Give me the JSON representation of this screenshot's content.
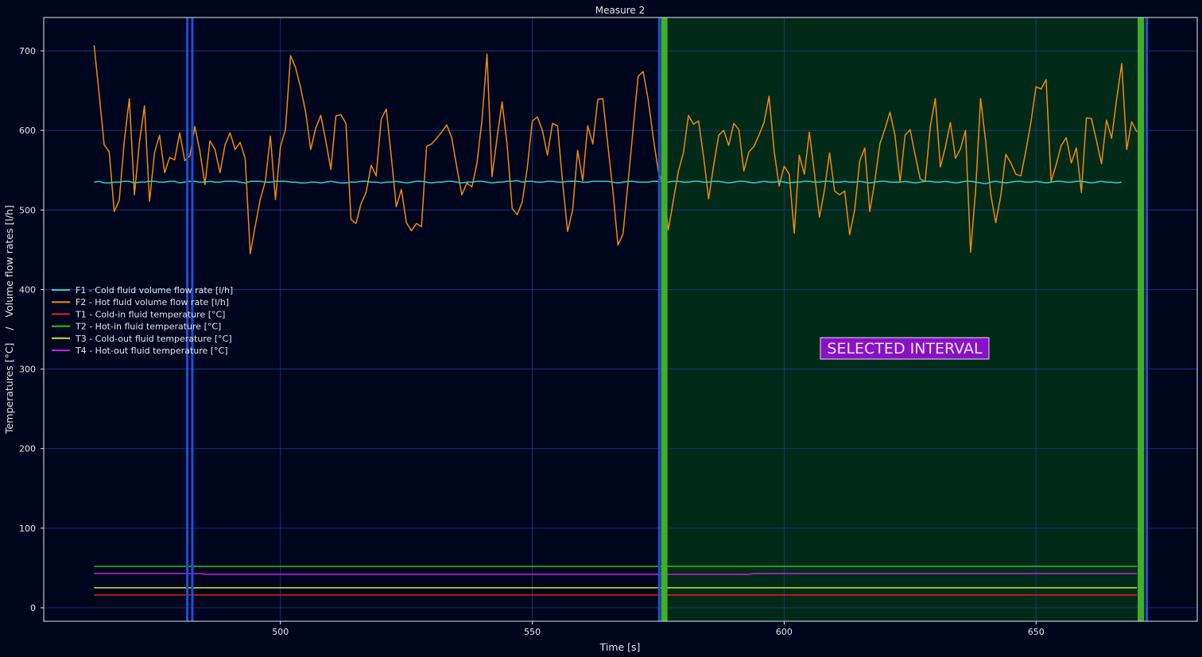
{
  "chart_data": {
    "type": "line",
    "title": "Measure 2",
    "xlabel": "Time [s]",
    "ylabel": "Temperatures [°C]    /   Volume flow rates [l/h]",
    "xlim": [
      453,
      682
    ],
    "ylim": [
      -17,
      742
    ],
    "x_ticks": [
      500,
      550,
      600,
      650
    ],
    "y_ticks": [
      0,
      100,
      200,
      300,
      400,
      500,
      600,
      700
    ],
    "grid": true,
    "legend_position": "center-left",
    "annotation": "SELECTED INTERVAL",
    "selected_interval": [
      575,
      672
    ],
    "markers": {
      "blue_lines_x": [
        481.5,
        482.5,
        575.2,
        672
      ],
      "green_lines_x": [
        576.2,
        670.8
      ]
    },
    "x_start": 463,
    "x_step": 1,
    "series": [
      {
        "name": "F1 - Cold fluid volume flow rate [l/h]",
        "color": "#22d3d3",
        "values": [
          535,
          536,
          534,
          534,
          535,
          535,
          536,
          536,
          534,
          535,
          535,
          536,
          536,
          535,
          535,
          536,
          536,
          534,
          535,
          536,
          536,
          535,
          535,
          536,
          535,
          535,
          536,
          536,
          536,
          535,
          534,
          536,
          536,
          536,
          535,
          535,
          536,
          536,
          536,
          535,
          535,
          534,
          534,
          535,
          535,
          534,
          535,
          536,
          535,
          534,
          534,
          535,
          535,
          536,
          536,
          535,
          535,
          534,
          535,
          535,
          536,
          535,
          534,
          535,
          536,
          536,
          535,
          534,
          535,
          535,
          536,
          536,
          535,
          534,
          535,
          535,
          536,
          536,
          535,
          534,
          535,
          535,
          536,
          536,
          537,
          535,
          536,
          536,
          535,
          535,
          536,
          536,
          535,
          535,
          536,
          536,
          536,
          535,
          535,
          536,
          536,
          536,
          536,
          535,
          534,
          535,
          536,
          536,
          535,
          535,
          535,
          536,
          536,
          536,
          535,
          536,
          536,
          535,
          535,
          536,
          536,
          535,
          535,
          536,
          536,
          535,
          534,
          535,
          536,
          536,
          535,
          534,
          535,
          536,
          535,
          535,
          536,
          535,
          534,
          535,
          535,
          536,
          536,
          535,
          535,
          536,
          536,
          535,
          535,
          536,
          535,
          535,
          536,
          535,
          534,
          535,
          536,
          536,
          535,
          535,
          535,
          536,
          535,
          534,
          535,
          536,
          536,
          535,
          535,
          536,
          535,
          534,
          535,
          536,
          536,
          535,
          534,
          533,
          535,
          536,
          535,
          534,
          535,
          536,
          536,
          535,
          535,
          536,
          535,
          534,
          535,
          536,
          536,
          535,
          535,
          536,
          536,
          535,
          534,
          535,
          536,
          535,
          535,
          534,
          535
        ]
      },
      {
        "name": "F2 - Hot fluid volume flow rate [l/h]",
        "color": "#f08a0c",
        "values": [
          707,
          646,
          582,
          573,
          498,
          512,
          587,
          640,
          519,
          585,
          631,
          511,
          572,
          594,
          547,
          566,
          563,
          597,
          562,
          568,
          605,
          574,
          532,
          587,
          576,
          547,
          582,
          597,
          576,
          585,
          565,
          445,
          480,
          514,
          536,
          593,
          513,
          580,
          601,
          694,
          679,
          654,
          623,
          576,
          603,
          619,
          587,
          551,
          618,
          620,
          609,
          488,
          483,
          508,
          522,
          556,
          543,
          614,
          627,
          567,
          504,
          526,
          484,
          474,
          483,
          479,
          580,
          583,
          590,
          598,
          607,
          591,
          554,
          519,
          534,
          529,
          558,
          613,
          696,
          542,
          591,
          636,
          582,
          502,
          494,
          510,
          553,
          612,
          617,
          600,
          569,
          609,
          606,
          536,
          473,
          500,
          575,
          537,
          606,
          583,
          639,
          640,
          581,
          524,
          456,
          470,
          534,
          601,
          668,
          674,
          639,
          591,
          549,
          532,
          475,
          512,
          549,
          572,
          619,
          608,
          612,
          567,
          514,
          556,
          594,
          600,
          581,
          609,
          601,
          549,
          573,
          580,
          594,
          610,
          643,
          574,
          530,
          555,
          545,
          471,
          569,
          545,
          598,
          547,
          491,
          525,
          572,
          524,
          519,
          524,
          469,
          500,
          562,
          578,
          498,
          537,
          583,
          602,
          623,
          594,
          535,
          594,
          601,
          569,
          539,
          536,
          605,
          640,
          554,
          579,
          610,
          565,
          577,
          600,
          447,
          524,
          640,
          586,
          520,
          484,
          518,
          570,
          559,
          545,
          543,
          575,
          611,
          655,
          652,
          664,
          536,
          557,
          581,
          591,
          559,
          578,
          522,
          616,
          615,
          587,
          558,
          613,
          590,
          639,
          684,
          576,
          611,
          598
        ]
      },
      {
        "name": "T1 - Cold-in fluid temperature [°C]",
        "color": "#e81c1c",
        "values": [
          16,
          16,
          16,
          16,
          16,
          16,
          16,
          16,
          16,
          16,
          16,
          16,
          16,
          16,
          16,
          16,
          16,
          16,
          16,
          16,
          16,
          16,
          16,
          16,
          16,
          16,
          16,
          16,
          16,
          16,
          16,
          16,
          16,
          16,
          16,
          16,
          16,
          16,
          16,
          16,
          16,
          16,
          16,
          16,
          16,
          16,
          16,
          16,
          16,
          16,
          16,
          16,
          16,
          16,
          16,
          16,
          16,
          16,
          16,
          16,
          16,
          16,
          16,
          16,
          16,
          16,
          16,
          16,
          16,
          16,
          16,
          16,
          16,
          16,
          16,
          16,
          16,
          16,
          16,
          16,
          16,
          16,
          16,
          16,
          16,
          16,
          16,
          16,
          16,
          16,
          16,
          16,
          16,
          16,
          16,
          16,
          16,
          16,
          16,
          16,
          16,
          16,
          16,
          16,
          16,
          16,
          16,
          16,
          16,
          16,
          16,
          16,
          16,
          16,
          16,
          16,
          16,
          16,
          16,
          16,
          16,
          16,
          16,
          16,
          16,
          16,
          16,
          16,
          16,
          16,
          16,
          16,
          16,
          16,
          16,
          16,
          16,
          16,
          16,
          16,
          16,
          16,
          16,
          16,
          16,
          16,
          16,
          16,
          16,
          16,
          16,
          16,
          16,
          16,
          16,
          16,
          16,
          16,
          16,
          16,
          16,
          16,
          16,
          16,
          16,
          16,
          16,
          16,
          16,
          16,
          16,
          16,
          16,
          16,
          16,
          16,
          16,
          16,
          16,
          16,
          16,
          16,
          16,
          16,
          16,
          16,
          16,
          16,
          16,
          16,
          16,
          16,
          16,
          16,
          16,
          16,
          16,
          16,
          16,
          16,
          16,
          16,
          16,
          16,
          16,
          16,
          16,
          16
        ]
      },
      {
        "name": "T2 - Hot-in fluid temperature [°C]",
        "color": "#2fbf1f",
        "values": [
          52,
          52,
          52,
          52,
          52,
          52,
          52,
          52,
          52,
          52,
          52,
          52,
          52,
          52,
          52,
          52,
          52,
          52,
          52,
          52,
          52,
          52,
          52,
          52,
          52,
          52,
          52,
          52,
          52,
          52,
          52,
          52,
          52,
          52,
          52,
          52,
          52,
          52,
          52,
          52,
          52,
          52,
          52,
          52,
          52,
          52,
          52,
          52,
          52,
          52,
          52,
          52,
          52,
          52,
          52,
          52,
          52,
          52,
          52,
          52,
          52,
          52,
          52,
          52,
          52,
          52,
          52,
          52,
          52,
          52,
          52,
          52,
          52,
          52,
          52,
          52,
          52,
          52,
          52,
          52,
          52,
          52,
          52,
          52,
          52,
          52,
          52,
          52,
          52,
          52,
          52,
          52,
          52,
          52,
          52,
          52,
          52,
          52,
          52,
          52,
          52,
          52,
          52,
          52,
          52,
          52,
          52,
          52,
          52,
          52,
          52,
          52,
          52,
          52,
          52,
          52,
          52,
          52,
          52,
          52,
          52,
          52,
          52,
          52,
          52,
          52,
          52,
          52,
          52,
          52,
          52,
          52,
          52,
          52,
          52,
          52,
          52,
          52,
          52,
          52,
          52,
          52,
          52,
          52,
          52,
          52,
          52,
          52,
          52,
          52,
          52,
          52,
          52,
          52,
          52,
          52,
          52,
          52,
          52,
          52,
          52,
          52,
          52,
          52,
          52,
          52,
          52,
          52,
          52,
          52,
          52,
          52,
          52,
          52,
          52,
          52,
          52,
          52,
          52,
          52,
          52,
          52,
          52,
          52,
          52,
          52,
          52,
          52,
          52,
          52,
          52,
          52,
          52,
          52,
          52,
          52,
          52,
          52,
          52,
          52,
          52,
          52,
          52,
          52,
          52,
          52,
          52,
          52
        ]
      },
      {
        "name": "T3 - Cold-out fluid temperature [°C]",
        "color": "#d6e21a",
        "values": [
          25,
          25,
          25,
          25,
          25,
          25,
          25,
          25,
          25,
          25,
          25,
          25,
          25,
          25,
          25,
          25,
          25,
          25,
          25,
          25,
          25,
          25,
          25,
          25,
          25,
          25,
          25,
          25,
          25,
          25,
          25,
          25,
          25,
          25,
          25,
          25,
          25,
          25,
          25,
          25,
          25,
          25,
          25,
          25,
          25,
          25,
          25,
          25,
          25,
          25,
          25,
          25,
          25,
          25,
          25,
          25,
          25,
          25,
          25,
          25,
          25,
          25,
          25,
          25,
          25,
          25,
          25,
          25,
          25,
          25,
          25,
          25,
          25,
          25,
          25,
          25,
          25,
          25,
          25,
          25,
          25,
          25,
          25,
          25,
          25,
          25,
          25,
          25,
          25,
          25,
          25,
          25,
          25,
          25,
          25,
          25,
          25,
          25,
          25,
          25,
          25,
          25,
          25,
          25,
          25,
          25,
          25,
          25,
          25,
          25,
          25,
          25,
          25,
          25,
          25,
          25,
          25,
          25,
          25,
          25,
          25,
          25,
          25,
          25,
          25,
          25,
          25,
          25,
          25,
          25,
          25,
          25,
          25,
          25,
          25,
          25,
          25,
          25,
          25,
          25,
          25,
          25,
          25,
          25,
          25,
          25,
          25,
          25,
          25,
          25,
          25,
          25,
          25,
          25,
          25,
          25,
          25,
          25,
          25,
          25,
          25,
          25,
          25,
          25,
          25,
          25,
          25,
          25,
          25,
          25,
          25,
          25,
          25,
          25,
          25,
          25,
          25,
          25,
          25,
          25,
          25,
          25,
          25,
          25,
          25,
          25,
          25,
          25,
          25,
          25,
          25,
          25,
          25,
          25,
          25,
          25,
          25,
          25,
          25,
          25,
          25,
          25,
          25,
          25,
          25,
          25,
          25,
          25
        ]
      },
      {
        "name": "T4 - Hot-out fluid temperature [°C]",
        "color": "#c81ee0",
        "values": [
          43,
          43,
          43,
          43,
          43,
          43,
          43,
          43,
          43,
          43,
          43,
          43,
          43,
          43,
          43,
          43,
          43,
          43,
          43,
          43,
          43,
          43,
          42,
          42,
          42,
          42,
          42,
          42,
          42,
          42,
          42,
          42,
          42,
          42,
          42,
          42,
          42,
          42,
          42,
          42,
          42,
          42,
          42,
          42,
          42,
          42,
          42,
          42,
          42,
          42,
          42,
          42,
          42,
          42,
          42,
          42,
          42,
          42,
          42,
          42,
          42,
          42,
          42,
          42,
          42,
          42,
          42,
          42,
          42,
          42,
          42,
          42,
          42,
          42,
          42,
          42,
          42,
          42,
          42,
          42,
          42,
          42,
          42,
          42,
          42,
          42,
          42,
          42,
          42,
          42,
          42,
          42,
          42,
          42,
          42,
          42,
          42,
          42,
          42,
          42,
          42,
          42,
          42,
          42,
          42,
          42,
          42,
          42,
          42,
          42,
          42,
          42,
          42,
          42,
          42,
          42,
          42,
          42,
          42,
          42,
          42,
          42,
          42,
          42,
          42,
          42,
          42,
          42,
          42,
          42,
          42,
          43,
          43,
          43,
          43,
          43,
          43,
          43,
          43,
          43,
          43,
          43,
          43,
          43,
          43,
          43,
          43,
          43,
          43,
          43,
          43,
          43,
          43,
          43,
          43,
          43,
          43,
          43,
          43,
          43,
          43,
          43,
          43,
          43,
          43,
          43,
          43,
          43,
          43,
          43,
          43,
          43,
          43,
          43,
          43,
          43,
          43,
          43,
          43,
          43,
          43,
          43,
          43,
          43,
          43,
          43,
          43,
          43,
          43,
          43,
          43,
          43,
          43,
          43,
          43,
          43,
          43,
          43,
          43,
          43,
          43,
          43,
          43,
          43,
          43,
          43,
          43,
          43
        ]
      }
    ],
    "colors": {
      "background": "#00061e",
      "grid": "#1f3a8a",
      "interval_fill": "#022a19",
      "interval_edge": "#3fae2a",
      "marker_blue": "#1e4fd8",
      "annotation_bg": "#8a10c8"
    }
  }
}
